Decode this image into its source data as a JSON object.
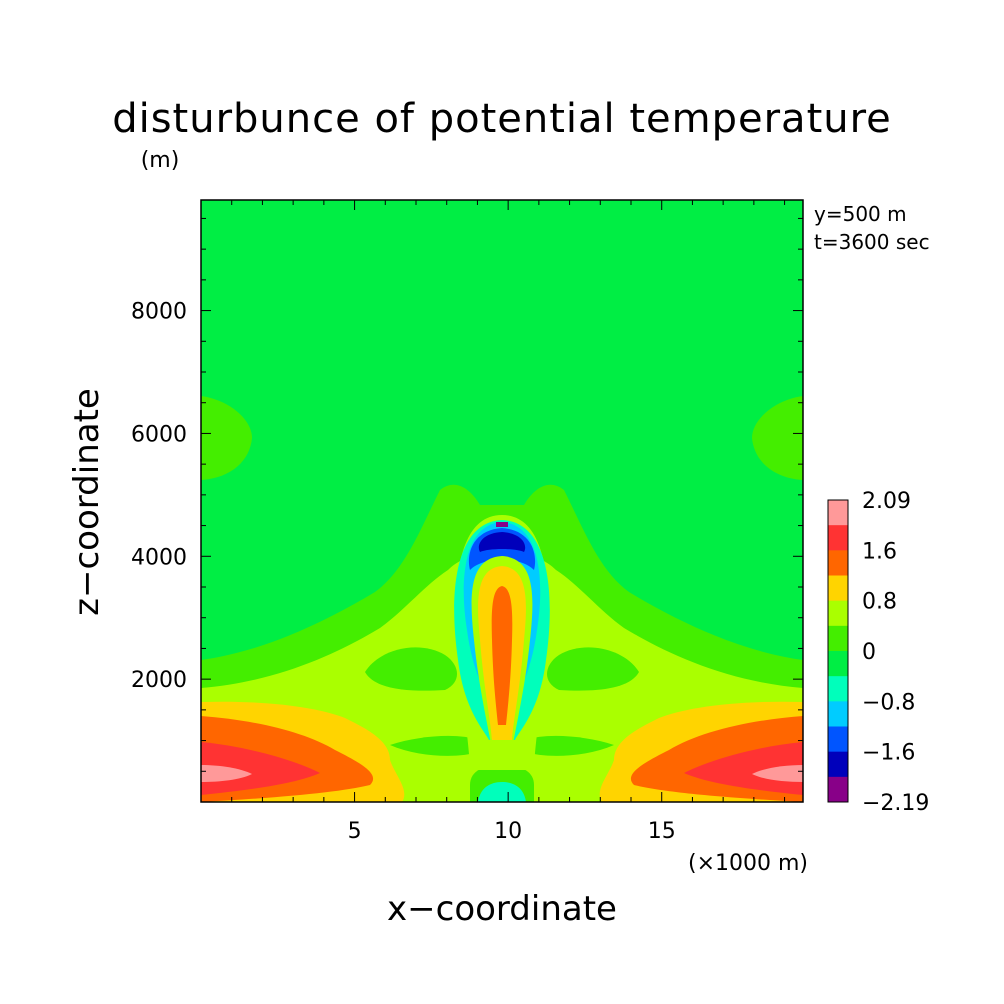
{
  "chart_data": {
    "type": "heatmap",
    "title": "disturbunce of potential temperature",
    "ylabel_unit": "(m)",
    "xlabel": "x−coordinate",
    "ylabel": "z−coordinate",
    "x_unit_note": "(×1000 m)",
    "annotations": [
      "y=500 m",
      "t=3600 sec"
    ],
    "xlim": [
      0,
      19.6
    ],
    "ylim": [
      0,
      9800
    ],
    "xticks": [
      5,
      10,
      15
    ],
    "xtick_labels": [
      "5",
      "10",
      "15"
    ],
    "yticks": [
      2000,
      4000,
      6000,
      8000
    ],
    "ytick_labels": [
      "2000",
      "4000",
      "6000",
      "8000"
    ],
    "grid": false,
    "legend": "colorbar at right",
    "colorbar": {
      "labels": [
        "2.09",
        "1.6",
        "0.8",
        "0",
        "−0.8",
        "−1.6",
        "−2.19"
      ],
      "colors": [
        "#ff9999",
        "#ff3333",
        "#ff6600",
        "#ffd400",
        "#aaff00",
        "#44ee00",
        "#00ee44",
        "#00ffbb",
        "#00ccff",
        "#0055ff",
        "#0000bb",
        "#880088"
      ]
    },
    "background_level": "0 to 0.4",
    "features": [
      {
        "name": "warm anomaly near surface, left",
        "x_range": [
          0,
          6
        ],
        "z_range": [
          0,
          1800
        ],
        "max": 2.09
      },
      {
        "name": "warm anomaly near surface, right",
        "x_range": [
          14,
          19.6
        ],
        "z_range": [
          0,
          1800
        ],
        "max": 2.09
      },
      {
        "name": "warm central column",
        "x_range": [
          9.5,
          10.5
        ],
        "z_range": [
          1300,
          3600
        ],
        "max": 1.6
      },
      {
        "name": "cold cap above column",
        "x_range": [
          9,
          11
        ],
        "z_range": [
          4200,
          4700
        ],
        "min": -2.19
      },
      {
        "name": "cold spot at surface center",
        "x_range": [
          9.5,
          10.5
        ],
        "z_range": [
          0,
          150
        ],
        "min": -0.8
      }
    ]
  }
}
